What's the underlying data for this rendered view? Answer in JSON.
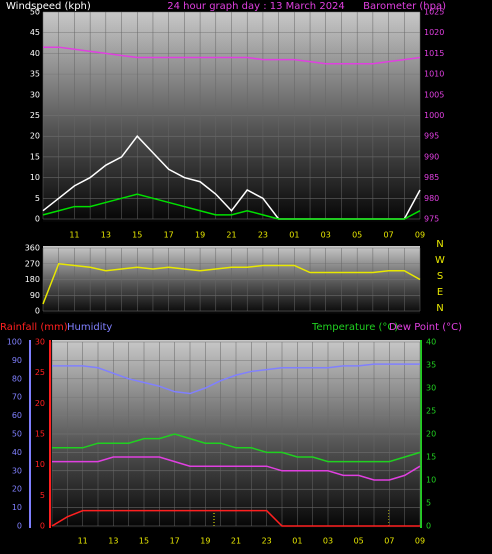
{
  "chart_data": [
    {
      "type": "line",
      "title": "24 hour graph day : 13 March 2024",
      "ylabel": "Windspeed (kph)",
      "y2label": "Barometer (hpa)",
      "categories": [
        null,
        null,
        "11",
        null,
        "13",
        null,
        "15",
        null,
        "17",
        null,
        "19",
        null,
        "21",
        null,
        "23",
        null,
        "01",
        null,
        "03",
        null,
        "05",
        null,
        "07",
        null,
        "09"
      ],
      "series": [
        {
          "color": "#ffffff",
          "values": [
            2,
            5,
            8,
            10,
            13,
            15,
            20,
            16,
            12,
            10,
            9,
            6,
            2,
            7,
            5,
            0,
            0,
            0,
            0,
            0,
            0,
            0,
            0,
            0,
            7
          ]
        },
        {
          "color": "#00e000",
          "values": [
            1,
            2,
            3,
            3,
            4,
            5,
            6,
            5,
            4,
            3,
            2,
            1,
            1,
            2,
            1,
            0,
            0,
            0,
            0,
            0,
            0,
            0,
            0,
            0,
            2
          ]
        },
        {
          "color": "#e040e0",
          "axis": "y2",
          "values": [
            1016.5,
            1016.5,
            1016,
            1015.5,
            1015,
            1014.5,
            1014,
            1014,
            1014,
            1014,
            1014,
            1014,
            1014,
            1014,
            1013.5,
            1013.5,
            1013.5,
            1013,
            1012.5,
            1012.5,
            1012.5,
            1012.5,
            1013,
            1013.5,
            1014
          ]
        }
      ],
      "ylim": [
        0,
        50
      ],
      "yticks": [
        0,
        5,
        10,
        15,
        20,
        25,
        30,
        35,
        40,
        45,
        50
      ],
      "y2lim": [
        975,
        1025
      ],
      "y2ticks": [
        975,
        980,
        985,
        990,
        995,
        1000,
        1005,
        1010,
        1015,
        1020,
        1025
      ],
      "grid": true
    },
    {
      "type": "line",
      "compass_labels": [
        "N",
        "W",
        "S",
        "E",
        "N"
      ],
      "series": [
        {
          "color": "#e8e800",
          "values": [
            40,
            270,
            260,
            250,
            230,
            240,
            250,
            240,
            250,
            240,
            230,
            240,
            250,
            250,
            260,
            260,
            260,
            220,
            220,
            220,
            220,
            220,
            230,
            230,
            180
          ]
        }
      ],
      "ylim": [
        0,
        360
      ],
      "yticks": [
        0,
        90,
        180,
        270,
        360
      ],
      "grid": true
    },
    {
      "type": "line",
      "categories": [
        null,
        null,
        "11",
        null,
        "13",
        null,
        "15",
        null,
        "17",
        null,
        "19",
        null,
        "21",
        null,
        "23",
        null,
        "01",
        null,
        "03",
        null,
        "05",
        null,
        "07",
        null,
        "09"
      ],
      "series": [
        {
          "name": "Humidity",
          "color": "#8080ff",
          "values": [
            87,
            87,
            87,
            86,
            83,
            80,
            78,
            76,
            73,
            72,
            75,
            79,
            82,
            84,
            85,
            86,
            86,
            86,
            86,
            87,
            87,
            88,
            88,
            88,
            88
          ]
        },
        {
          "name": "Temperature (°C)",
          "color": "#20d020",
          "axis": "y2",
          "values": [
            17,
            17,
            17,
            18,
            18,
            18,
            19,
            19,
            20,
            19,
            18,
            18,
            17,
            17,
            16,
            16,
            15,
            15,
            14,
            14,
            14,
            14,
            14,
            15,
            16
          ]
        },
        {
          "name": "Dew Point (°C)",
          "color": "#e040e0",
          "axis": "y2",
          "values": [
            14,
            14,
            14,
            14,
            15,
            15,
            15,
            15,
            14,
            13,
            13,
            13,
            13,
            13,
            13,
            12,
            12,
            12,
            12,
            11,
            11,
            10,
            10,
            11,
            13
          ]
        },
        {
          "name": "Rainfall (mm)",
          "color": "#ff2020",
          "axis": "y3",
          "values": [
            0,
            1.5,
            2.5,
            2.5,
            2.5,
            2.5,
            2.5,
            2.5,
            2.5,
            2.5,
            2.5,
            2.5,
            2.5,
            2.5,
            2.5,
            0,
            0,
            0,
            0,
            0,
            0,
            0,
            0,
            0,
            0
          ]
        }
      ],
      "ylim": [
        0,
        100
      ],
      "yticks": [
        0,
        10,
        20,
        30,
        40,
        50,
        60,
        70,
        80,
        90,
        100
      ],
      "y2lim": [
        0,
        40
      ],
      "y2ticks": [
        0,
        5,
        10,
        15,
        20,
        25,
        30,
        35,
        40
      ],
      "y3lim": [
        0,
        30
      ],
      "y3ticks": [
        0,
        5,
        10,
        15,
        20,
        25,
        30
      ],
      "grid": true
    }
  ]
}
